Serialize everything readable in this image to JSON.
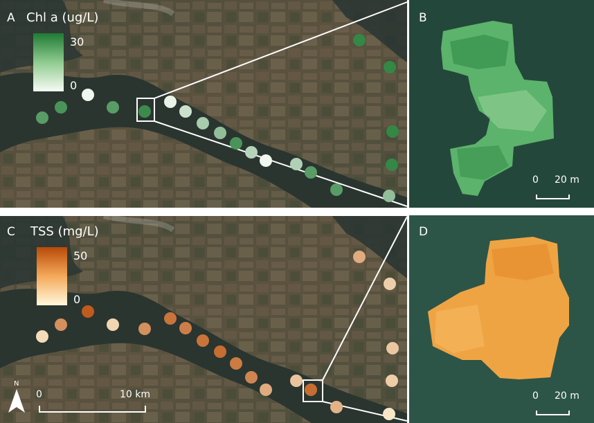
{
  "panels": {
    "a": {
      "label": "A",
      "title": "Chl a (ug/L)",
      "legend_max": "30",
      "legend_min": "0"
    },
    "b": {
      "label": "B",
      "scale_zero": "0",
      "scale_text": "20 m"
    },
    "c": {
      "label": "C",
      "title": "TSS (mg/L)",
      "legend_max": "50",
      "legend_min": "0"
    },
    "d": {
      "label": "D",
      "scale_zero": "0",
      "scale_text": "20 m"
    }
  },
  "map_scale": {
    "zero": "0",
    "text": "10 km"
  },
  "north_arrow": {
    "letter": "N",
    "icon": "north-arrow-icon"
  },
  "colors": {
    "chl_high": "#1f7a33",
    "chl_low": "#f7fbf4",
    "tss_high": "#b84a08",
    "tss_low": "#fff8dc"
  },
  "sampling_points": {
    "chl_values_ug_per_L": [
      22,
      24,
      1,
      22,
      26,
      2,
      6,
      11,
      14,
      24,
      9,
      1,
      10,
      22,
      22,
      27,
      27,
      27,
      27,
      14
    ],
    "tss_values_mg_per_L": [
      8,
      30,
      45,
      10,
      30,
      38,
      35,
      38,
      40,
      36,
      33,
      22,
      15,
      40,
      20,
      22,
      12,
      14,
      12,
      5
    ]
  }
}
